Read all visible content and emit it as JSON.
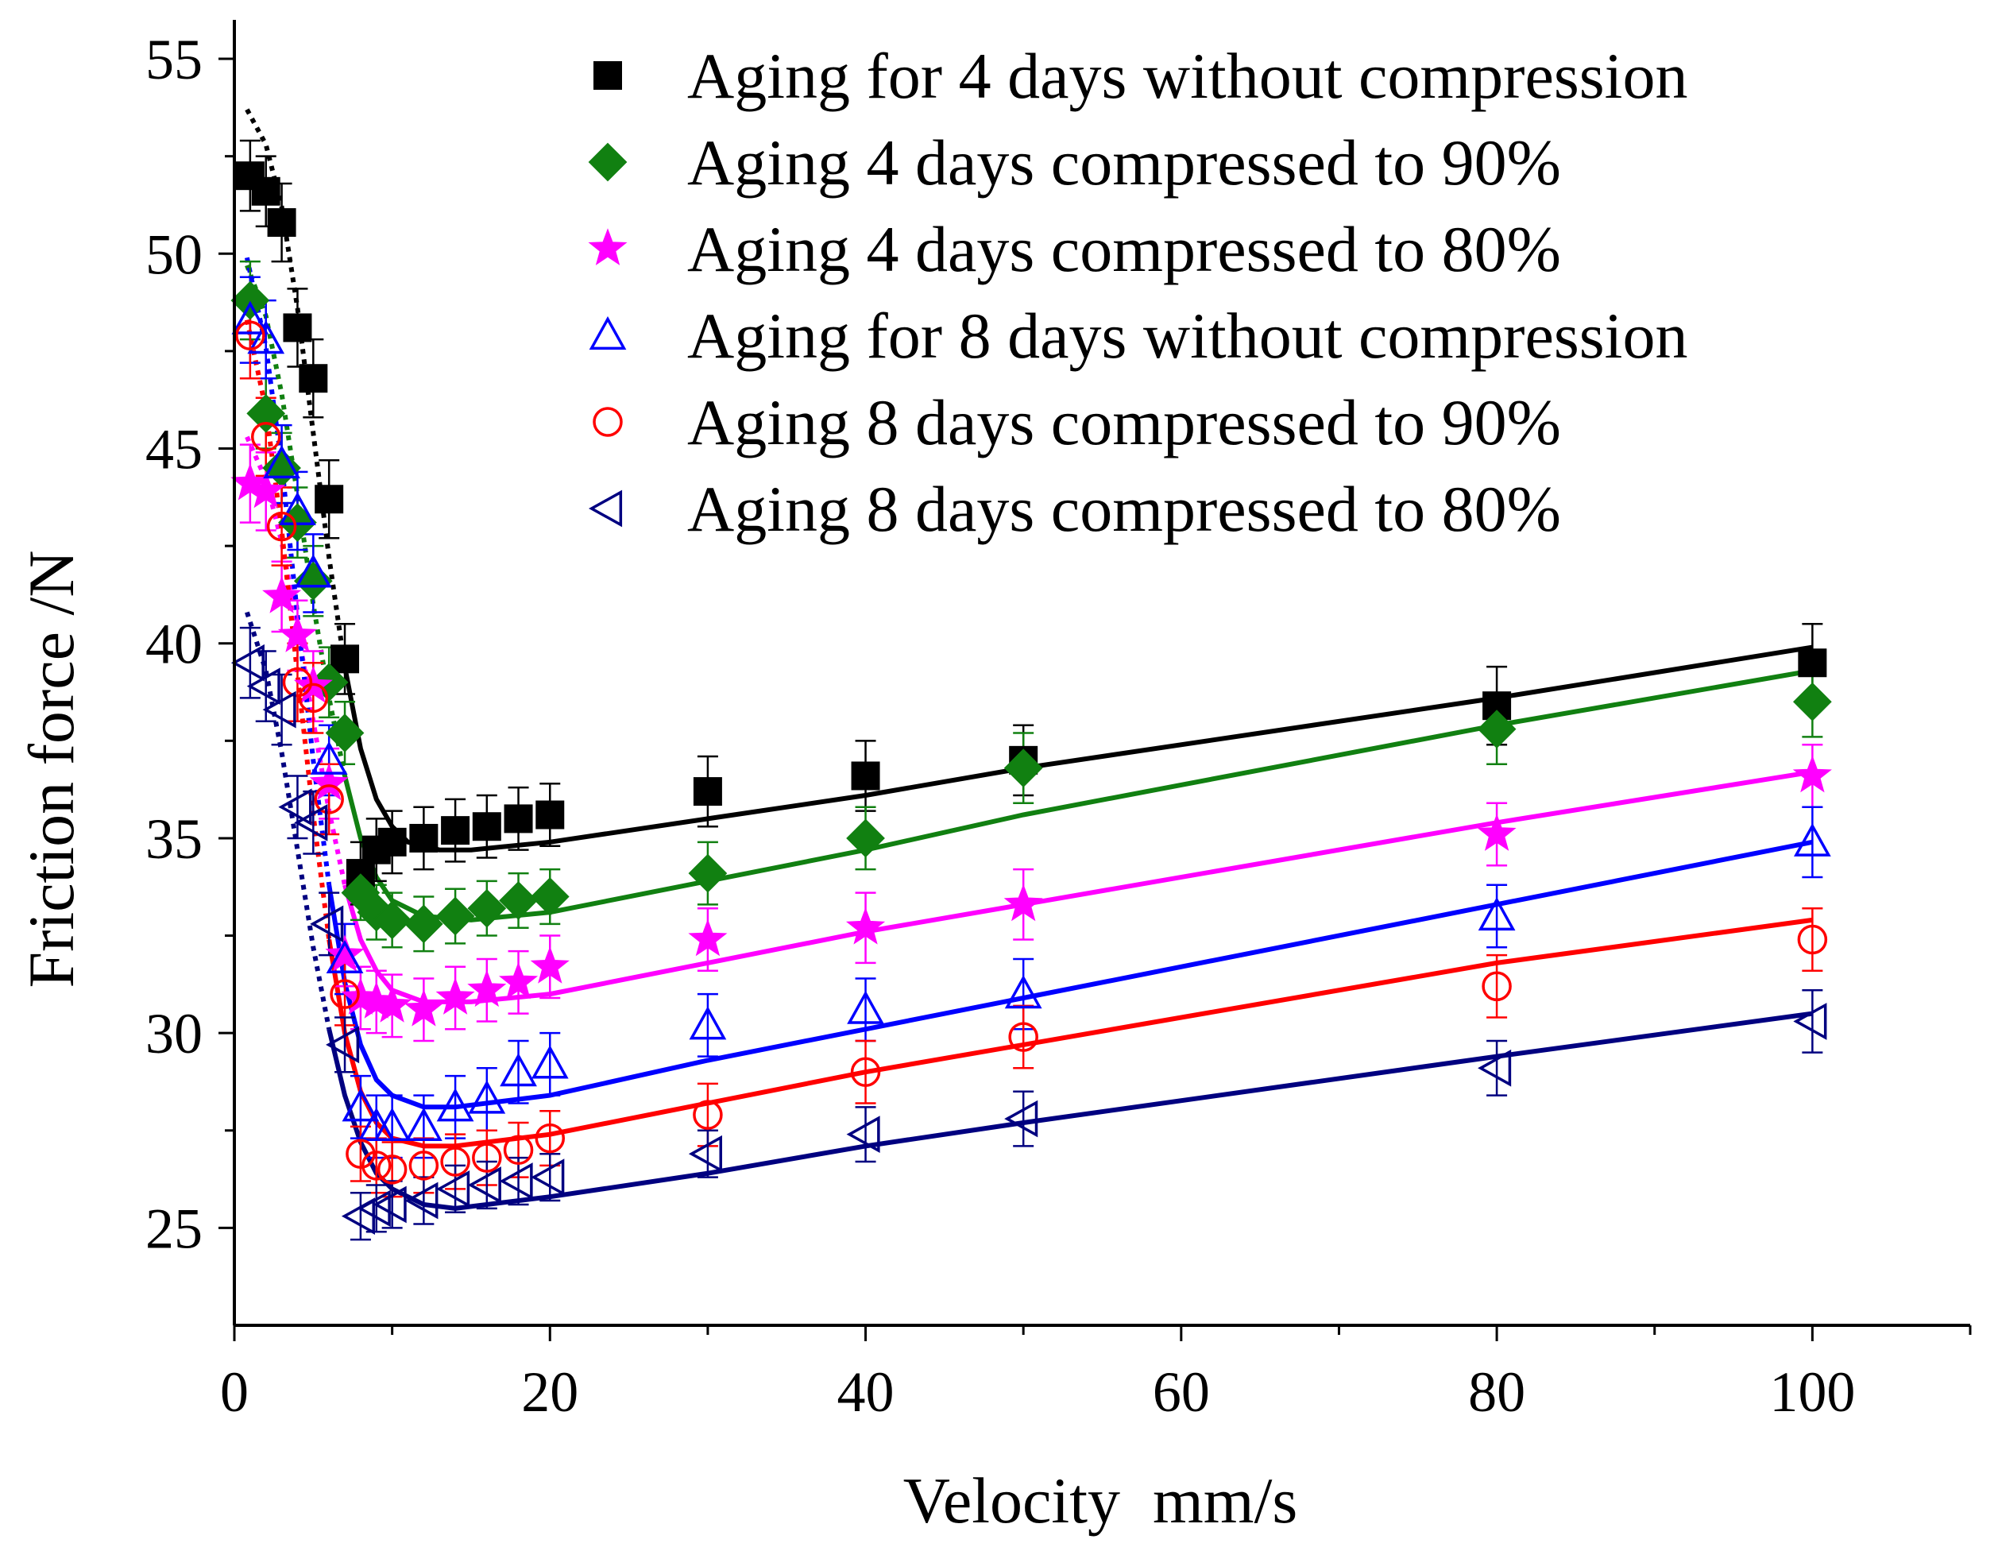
{
  "chart_data": {
    "type": "scatter",
    "xlabel": "Velocity  mm/s",
    "ylabel": "Friction force /N",
    "xlim": [
      0,
      110
    ],
    "ylim": [
      22.5,
      56
    ],
    "xticks": [
      0,
      20,
      40,
      60,
      80,
      100
    ],
    "yticks": [
      25,
      30,
      35,
      40,
      45,
      50,
      55
    ],
    "xtick_labels": [
      "0",
      "20",
      "40",
      "60",
      "80",
      "100"
    ],
    "ytick_labels": [
      "25",
      "30",
      "35",
      "40",
      "45",
      "50",
      "55"
    ],
    "grid": false,
    "legend_position": "top-right",
    "x": [
      1,
      2,
      3,
      4,
      5,
      6,
      7,
      8,
      9,
      10,
      12,
      14,
      16,
      18,
      20,
      30,
      40,
      50,
      80,
      100
    ],
    "series": [
      {
        "name": "Aging for 4 days without compression",
        "color": "#000000",
        "marker": "square",
        "filled": true,
        "y": [
          52.0,
          51.6,
          50.8,
          48.1,
          46.8,
          43.7,
          39.6,
          34.1,
          34.7,
          34.9,
          35.0,
          35.2,
          35.3,
          35.5,
          35.6,
          36.2,
          36.6,
          37.0,
          38.4,
          39.5
        ],
        "err": [
          0.9,
          0.9,
          1.0,
          1.0,
          1.0,
          1.0,
          0.9,
          0.8,
          0.8,
          0.8,
          0.8,
          0.8,
          0.8,
          0.8,
          0.8,
          0.9,
          0.9,
          0.9,
          1.0,
          1.0
        ],
        "fit": [
          [
            0.8,
            53.7
          ],
          [
            2,
            52.8
          ],
          [
            3,
            51.2
          ],
          [
            4,
            48.6
          ],
          [
            5,
            45.4
          ],
          [
            6,
            42.2
          ],
          [
            7,
            39.4
          ],
          [
            8,
            37.3
          ],
          [
            9,
            36.0
          ],
          [
            10,
            35.3
          ],
          [
            11,
            34.9
          ],
          [
            13,
            34.7
          ],
          [
            15,
            34.7
          ],
          [
            20,
            34.9
          ],
          [
            30,
            35.5
          ],
          [
            40,
            36.1
          ],
          [
            50,
            36.8
          ],
          [
            80,
            38.6
          ],
          [
            100,
            39.9
          ]
        ],
        "fit_split": 7
      },
      {
        "name": "Aging 4 days compressed to 90%",
        "color": "#118011",
        "marker": "diamond",
        "filled": true,
        "y": [
          48.8,
          45.9,
          44.5,
          43.1,
          41.6,
          39.0,
          37.7,
          33.6,
          33.1,
          32.9,
          32.8,
          33.0,
          33.2,
          33.4,
          33.5,
          34.1,
          35.0,
          36.8,
          37.8,
          38.5
        ],
        "err": [
          1.0,
          0.9,
          0.9,
          0.9,
          0.9,
          0.9,
          0.8,
          0.7,
          0.7,
          0.7,
          0.7,
          0.7,
          0.7,
          0.7,
          0.7,
          0.8,
          0.8,
          0.9,
          0.9,
          0.9
        ],
        "fit": [
          [
            0.8,
            49.7
          ],
          [
            2,
            48.4
          ],
          [
            3,
            46.4
          ],
          [
            4,
            43.8
          ],
          [
            5,
            41.0
          ],
          [
            6,
            38.6
          ],
          [
            7,
            36.6
          ],
          [
            8,
            35.0
          ],
          [
            9,
            34.0
          ],
          [
            10,
            33.4
          ],
          [
            12,
            33.0
          ],
          [
            15,
            32.9
          ],
          [
            20,
            33.1
          ],
          [
            30,
            33.9
          ],
          [
            40,
            34.7
          ],
          [
            50,
            35.6
          ],
          [
            80,
            37.9
          ],
          [
            100,
            39.3
          ]
        ],
        "fit_split": 7
      },
      {
        "name": "Aging 4 days compressed to 80%",
        "color": "#ff00ff",
        "marker": "star",
        "filled": true,
        "y": [
          44.1,
          43.9,
          41.2,
          40.2,
          38.9,
          36.4,
          32.0,
          30.9,
          30.8,
          30.7,
          30.6,
          30.9,
          31.1,
          31.3,
          31.7,
          32.4,
          32.7,
          33.3,
          35.1,
          36.6
        ],
        "err": [
          1.0,
          1.0,
          0.9,
          0.9,
          0.9,
          0.9,
          0.8,
          0.8,
          0.8,
          0.8,
          0.8,
          0.8,
          0.8,
          0.8,
          0.8,
          0.8,
          0.9,
          0.9,
          0.8,
          0.8
        ],
        "fit": [
          [
            0.8,
            45.3
          ],
          [
            2,
            44.2
          ],
          [
            3,
            42.6
          ],
          [
            4,
            40.4
          ],
          [
            5,
            38.0
          ],
          [
            6,
            35.7
          ],
          [
            7,
            33.8
          ],
          [
            8,
            32.4
          ],
          [
            9,
            31.6
          ],
          [
            10,
            31.1
          ],
          [
            12,
            30.8
          ],
          [
            15,
            30.8
          ],
          [
            20,
            31.0
          ],
          [
            30,
            31.8
          ],
          [
            40,
            32.6
          ],
          [
            50,
            33.3
          ],
          [
            80,
            35.4
          ],
          [
            100,
            36.7
          ]
        ],
        "fit_split": 7
      },
      {
        "name": "Aging for 8 days without compression",
        "color": "#0000ff",
        "marker": "triangle",
        "filled": false,
        "y": [
          48.3,
          47.8,
          44.6,
          43.4,
          41.8,
          37.0,
          31.9,
          28.1,
          27.6,
          27.6,
          27.6,
          28.1,
          28.3,
          29.0,
          29.2,
          30.2,
          30.6,
          31.0,
          33.0,
          34.9
        ],
        "err": [
          1.1,
          1.0,
          1.0,
          1.0,
          1.0,
          0.9,
          0.9,
          0.8,
          0.8,
          0.8,
          0.8,
          0.8,
          0.8,
          0.8,
          0.8,
          0.8,
          0.8,
          0.9,
          0.8,
          0.9
        ],
        "fit": [
          [
            0.8,
            49.9
          ],
          [
            2,
            47.6
          ],
          [
            3,
            44.6
          ],
          [
            4,
            40.7
          ],
          [
            5,
            37.0
          ],
          [
            6,
            33.8
          ],
          [
            7,
            31.3
          ],
          [
            8,
            29.7
          ],
          [
            9,
            28.8
          ],
          [
            10,
            28.4
          ],
          [
            12,
            28.1
          ],
          [
            14,
            28.1
          ],
          [
            20,
            28.4
          ],
          [
            30,
            29.3
          ],
          [
            40,
            30.1
          ],
          [
            50,
            30.9
          ],
          [
            80,
            33.3
          ],
          [
            100,
            34.9
          ]
        ],
        "fit_split": 6
      },
      {
        "name": "Aging 8 days compressed to 90%",
        "color": "#ff0000",
        "marker": "circle",
        "filled": false,
        "y": [
          47.9,
          45.3,
          43.0,
          39.0,
          38.6,
          36.0,
          31.0,
          26.9,
          26.6,
          26.5,
          26.6,
          26.7,
          26.8,
          27.0,
          27.3,
          27.9,
          29.0,
          29.9,
          31.2,
          32.4
        ],
        "err": [
          1.1,
          1.0,
          1.0,
          1.0,
          0.9,
          0.9,
          0.8,
          0.7,
          0.7,
          0.7,
          0.7,
          0.7,
          0.7,
          0.7,
          0.7,
          0.8,
          0.8,
          0.8,
          0.8,
          0.8
        ],
        "fit": [
          [
            0.8,
            48.3
          ],
          [
            2,
            46.0
          ],
          [
            3,
            42.9
          ],
          [
            4,
            39.2
          ],
          [
            5,
            35.6
          ],
          [
            6,
            32.4
          ],
          [
            7,
            30.0
          ],
          [
            8,
            28.5
          ],
          [
            9,
            27.7
          ],
          [
            10,
            27.3
          ],
          [
            12,
            27.1
          ],
          [
            14,
            27.1
          ],
          [
            20,
            27.4
          ],
          [
            30,
            28.2
          ],
          [
            40,
            29.0
          ],
          [
            50,
            29.7
          ],
          [
            80,
            31.8
          ],
          [
            100,
            32.9
          ]
        ],
        "fit_split": 6
      },
      {
        "name": "Aging 8 days compressed to 80%",
        "color": "#000080",
        "marker": "left-triangle",
        "filled": false,
        "y": [
          39.5,
          38.9,
          38.3,
          35.8,
          35.4,
          32.8,
          29.7,
          25.3,
          25.5,
          25.6,
          25.7,
          26.0,
          26.1,
          26.2,
          26.3,
          26.9,
          27.4,
          27.8,
          29.1,
          30.3
        ],
        "err": [
          0.9,
          0.9,
          0.9,
          0.8,
          0.8,
          0.8,
          0.7,
          0.6,
          0.6,
          0.6,
          0.6,
          0.6,
          0.6,
          0.6,
          0.6,
          0.6,
          0.7,
          0.7,
          0.7,
          0.8
        ],
        "fit": [
          [
            0.8,
            40.8
          ],
          [
            2,
            39.3
          ],
          [
            3,
            37.2
          ],
          [
            4,
            34.7
          ],
          [
            5,
            32.2
          ],
          [
            6,
            30.1
          ],
          [
            7,
            28.4
          ],
          [
            8,
            27.2
          ],
          [
            9,
            26.4
          ],
          [
            10,
            26.0
          ],
          [
            12,
            25.6
          ],
          [
            14,
            25.5
          ],
          [
            20,
            25.8
          ],
          [
            30,
            26.4
          ],
          [
            40,
            27.1
          ],
          [
            50,
            27.7
          ],
          [
            80,
            29.4
          ],
          [
            100,
            30.5
          ]
        ],
        "fit_split": 6
      }
    ]
  }
}
